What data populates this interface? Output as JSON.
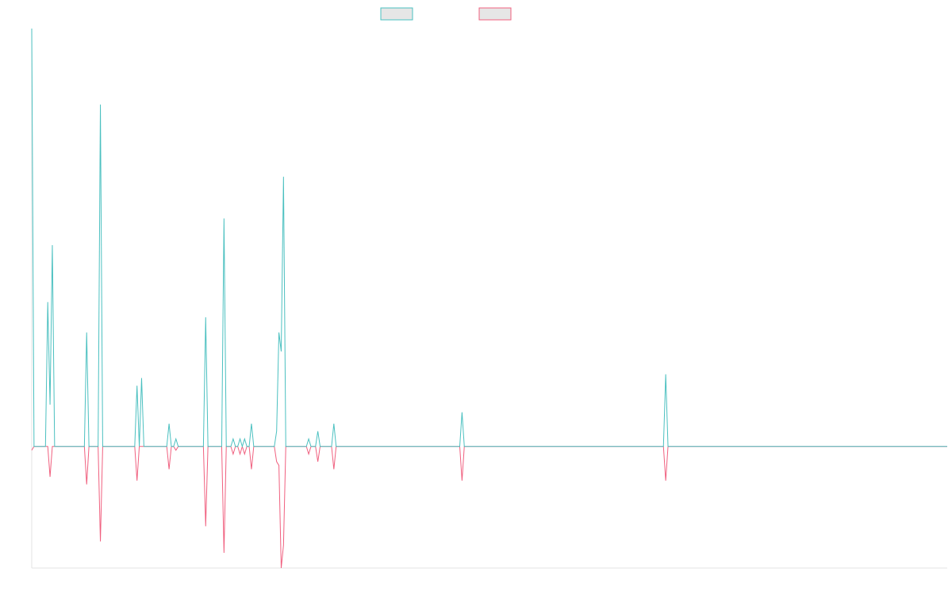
{
  "chart_data": {
    "type": "line",
    "title": "",
    "xlabel": "",
    "ylabel": "",
    "x": [
      0,
      1,
      2,
      3,
      4,
      5,
      6,
      7,
      8,
      9,
      10,
      11,
      12,
      13,
      14,
      15,
      16,
      17,
      18,
      19,
      20,
      21,
      22,
      23,
      24,
      25,
      26,
      27,
      28,
      29,
      30,
      31,
      32,
      33,
      34,
      35,
      36,
      37,
      38,
      39,
      40,
      41,
      42,
      43,
      44,
      45,
      46,
      47,
      48,
      49,
      50,
      51,
      52,
      53,
      54,
      55,
      56,
      57,
      58,
      59,
      60,
      61,
      62,
      63,
      64,
      65,
      66,
      67,
      68,
      69,
      70,
      71,
      72,
      73,
      74,
      75,
      76,
      77,
      78,
      79,
      80,
      81,
      82,
      83,
      84,
      85,
      86,
      87,
      88,
      89,
      90,
      91,
      92,
      93,
      94,
      95,
      96,
      97,
      98,
      99,
      100,
      101,
      102,
      103,
      104,
      105,
      106,
      107,
      108,
      109,
      110,
      111,
      112,
      113,
      114,
      115,
      116,
      117,
      118,
      119,
      120,
      121,
      122,
      123,
      124,
      125,
      126,
      127,
      128,
      129,
      130,
      131,
      132,
      133,
      134,
      135,
      136,
      137,
      138,
      139,
      140,
      141,
      142,
      143,
      144,
      145,
      146,
      147,
      148,
      149,
      150,
      151,
      152,
      153,
      154,
      155,
      156,
      157,
      158,
      159,
      160,
      161,
      162,
      163,
      164,
      165,
      166,
      167,
      168,
      169,
      170,
      171,
      172,
      173,
      174,
      175,
      176,
      177,
      178,
      179,
      180,
      181,
      182,
      183,
      184,
      185,
      186,
      187,
      188,
      189,
      190,
      191,
      192,
      193,
      194,
      195,
      196,
      197,
      198,
      199,
      200,
      201,
      202,
      203,
      204,
      205,
      206,
      207,
      208,
      209,
      210,
      211,
      212,
      213,
      214,
      215,
      216,
      217,
      218,
      219,
      220,
      221,
      222,
      223,
      224,
      225,
      226,
      227,
      228,
      229,
      230,
      231,
      232,
      233,
      234,
      235,
      236,
      237,
      238,
      239,
      240,
      241,
      242,
      243,
      244,
      245,
      246,
      247,
      248,
      249,
      250,
      251,
      252,
      253,
      254,
      255,
      256,
      257,
      258,
      259,
      260,
      261,
      262,
      263,
      264,
      265,
      266,
      267,
      268,
      269,
      270,
      271,
      272,
      273,
      274,
      275,
      276,
      277,
      278,
      279,
      280,
      281,
      282,
      283,
      284,
      285,
      286,
      287,
      288,
      289,
      290,
      291,
      292,
      293,
      294,
      295,
      296,
      297,
      298,
      299,
      300,
      301,
      302,
      303,
      304,
      305,
      306,
      307,
      308,
      309,
      310,
      311,
      312,
      313,
      314,
      315,
      316,
      317,
      318,
      319,
      320,
      321,
      322,
      323,
      324,
      325,
      326,
      327,
      328,
      329,
      330,
      331,
      332,
      333,
      334,
      335,
      336,
      337,
      338,
      339,
      340,
      341,
      342,
      343,
      344,
      345,
      346,
      347,
      348,
      349,
      350,
      351,
      352,
      353,
      354,
      355,
      356,
      357,
      358,
      359,
      360,
      361,
      362,
      363,
      364,
      365,
      366,
      367,
      368,
      369,
      370,
      371,
      372,
      373,
      374,
      375,
      376,
      377,
      378,
      379,
      380,
      381,
      382,
      383,
      384,
      385,
      386,
      387,
      388,
      389,
      390,
      391,
      392,
      393,
      394,
      395,
      396,
      397,
      398,
      399,
      400
    ],
    "series": [
      {
        "color": "#4bc0c0",
        "values": [
          110,
          0,
          0,
          0,
          0,
          0,
          0,
          38,
          11,
          53,
          0,
          0,
          0,
          0,
          0,
          0,
          0,
          0,
          0,
          0,
          0,
          0,
          0,
          0,
          30,
          0,
          0,
          0,
          0,
          0,
          90,
          0,
          0,
          0,
          0,
          0,
          0,
          0,
          0,
          0,
          0,
          0,
          0,
          0,
          0,
          0,
          16,
          0,
          18,
          0,
          0,
          0,
          0,
          0,
          0,
          0,
          0,
          0,
          0,
          0,
          6,
          0,
          0,
          2,
          0,
          0,
          0,
          0,
          0,
          0,
          0,
          0,
          0,
          0,
          0,
          0,
          34,
          0,
          0,
          0,
          0,
          0,
          0,
          0,
          60,
          0,
          0,
          0,
          2,
          0,
          0,
          2,
          0,
          2,
          0,
          0,
          6,
          0,
          0,
          0,
          0,
          0,
          0,
          0,
          0,
          0,
          0,
          4,
          30,
          25,
          71,
          0,
          0,
          0,
          0,
          0,
          0,
          0,
          0,
          0,
          0,
          2,
          0,
          0,
          0,
          4,
          0,
          0,
          0,
          0,
          0,
          0,
          6,
          0,
          0,
          0,
          0,
          0,
          0,
          0,
          0,
          0,
          0,
          0,
          0,
          0,
          0,
          0,
          0,
          0,
          0,
          0,
          0,
          0,
          0,
          0,
          0,
          0,
          0,
          0,
          0,
          0,
          0,
          0,
          0,
          0,
          0,
          0,
          0,
          0,
          0,
          0,
          0,
          0,
          0,
          0,
          0,
          0,
          0,
          0,
          0,
          0,
          0,
          0,
          0,
          0,
          0,
          0,
          9,
          0,
          0,
          0,
          0,
          0,
          0,
          0,
          0,
          0,
          0,
          0,
          0,
          0,
          0,
          0,
          0,
          0,
          0,
          0,
          0,
          0,
          0,
          0,
          0,
          0,
          0,
          0,
          0,
          0,
          0,
          0,
          0,
          0,
          0,
          0,
          0,
          0,
          0,
          0,
          0,
          0,
          0,
          0,
          0,
          0,
          0,
          0,
          0,
          0,
          0,
          0,
          0,
          0,
          0,
          0,
          0,
          0,
          0,
          0,
          0,
          0,
          0,
          0,
          0,
          0,
          0,
          0,
          0,
          0,
          0,
          0,
          0,
          0,
          0,
          0,
          0,
          0,
          0,
          0,
          0,
          0,
          0,
          0,
          0,
          0,
          0,
          0,
          0,
          19,
          0,
          0,
          0,
          0,
          0,
          0,
          0,
          0,
          0,
          0,
          0,
          0,
          0,
          0,
          0,
          0,
          0,
          0,
          0,
          0,
          0,
          0,
          0,
          0,
          0,
          0,
          0,
          0,
          0,
          0,
          0,
          0,
          0,
          0,
          0,
          0,
          0,
          0,
          0,
          0,
          0,
          0,
          0,
          0,
          0,
          0,
          0,
          0,
          0,
          0,
          0,
          0,
          0,
          0,
          0,
          0,
          0,
          0,
          0,
          0,
          0,
          0,
          0,
          0,
          0,
          0,
          0,
          0,
          0,
          0,
          0,
          0,
          0,
          0,
          0,
          0,
          0,
          0,
          0,
          0,
          0,
          0,
          0,
          0,
          0,
          0,
          0,
          0,
          0,
          0,
          0,
          0,
          0,
          0,
          0,
          0,
          0,
          0,
          0,
          0,
          0,
          0,
          0,
          0,
          0,
          0,
          0,
          0,
          0,
          0,
          0,
          0,
          0,
          0,
          0,
          0,
          0,
          0,
          0,
          0,
          0,
          0,
          0
        ]
      },
      {
        "color": "#f0607f",
        "values": [
          -1,
          0,
          0,
          0,
          0,
          0,
          0,
          0,
          -8,
          0,
          0,
          0,
          0,
          0,
          0,
          0,
          0,
          0,
          0,
          0,
          0,
          0,
          0,
          0,
          -10,
          0,
          0,
          0,
          0,
          0,
          -25,
          0,
          0,
          0,
          0,
          0,
          0,
          0,
          0,
          0,
          0,
          0,
          0,
          0,
          0,
          0,
          -9,
          0,
          0,
          0,
          0,
          0,
          0,
          0,
          0,
          0,
          0,
          0,
          0,
          0,
          -6,
          0,
          0,
          -1,
          0,
          0,
          0,
          0,
          0,
          0,
          0,
          0,
          0,
          0,
          0,
          0,
          -21,
          0,
          0,
          0,
          0,
          0,
          0,
          0,
          -28,
          0,
          0,
          0,
          -2,
          0,
          0,
          -2,
          0,
          -2,
          0,
          0,
          -6,
          0,
          0,
          0,
          0,
          0,
          0,
          0,
          0,
          0,
          0,
          -4,
          -5,
          -32,
          -26,
          0,
          0,
          0,
          0,
          0,
          0,
          0,
          0,
          0,
          0,
          -2,
          0,
          0,
          0,
          -4,
          0,
          0,
          0,
          0,
          0,
          0,
          -6,
          0,
          0,
          0,
          0,
          0,
          0,
          0,
          0,
          0,
          0,
          0,
          0,
          0,
          0,
          0,
          0,
          0,
          0,
          0,
          0,
          0,
          0,
          0,
          0,
          0,
          0,
          0,
          0,
          0,
          0,
          0,
          0,
          0,
          0,
          0,
          0,
          0,
          0,
          0,
          0,
          0,
          0,
          0,
          0,
          0,
          0,
          0,
          0,
          0,
          0,
          0,
          0,
          0,
          0,
          0,
          -9,
          0,
          0,
          0,
          0,
          0,
          0,
          0,
          0,
          0,
          0,
          0,
          0,
          0,
          0,
          0,
          0,
          0,
          0,
          0,
          0,
          0,
          0,
          0,
          0,
          0,
          0,
          0,
          0,
          0,
          0,
          0,
          0,
          0,
          0,
          0,
          0,
          0,
          0,
          0,
          0,
          0,
          0,
          0,
          0,
          0,
          0,
          0,
          0,
          0,
          0,
          0,
          0,
          0,
          0,
          0,
          0,
          0,
          0,
          0,
          0,
          0,
          0,
          0,
          0,
          0,
          0,
          0,
          0,
          0,
          0,
          0,
          0,
          0,
          0,
          0,
          0,
          0,
          0,
          0,
          0,
          0,
          0,
          0,
          0,
          0,
          0,
          0,
          0,
          -9,
          0,
          0,
          0,
          0,
          0,
          0,
          0,
          0,
          0,
          0,
          0,
          0,
          0,
          0,
          0,
          0,
          0,
          0,
          0,
          0,
          0,
          0,
          0,
          0,
          0,
          0,
          0,
          0,
          0,
          0,
          0,
          0,
          0,
          0,
          0,
          0,
          0,
          0,
          0,
          0,
          0,
          0,
          0,
          0,
          0,
          0,
          0,
          0,
          0,
          0,
          0,
          0,
          0,
          0,
          0,
          0,
          0,
          0,
          0,
          0,
          0,
          0,
          0,
          0,
          0,
          0,
          0,
          0,
          0,
          0,
          0,
          0,
          0,
          0,
          0,
          0,
          0,
          0,
          0,
          0,
          0,
          0,
          0,
          0,
          0,
          0,
          0,
          0,
          0,
          0,
          0,
          0,
          0,
          0,
          0,
          0,
          0,
          0,
          0,
          0,
          0,
          0,
          0,
          0,
          0,
          0,
          0,
          0,
          0,
          0,
          0,
          0,
          0,
          0,
          0,
          0,
          0,
          0,
          0,
          0,
          0,
          0,
          0
        ]
      }
    ],
    "xlim": [
      0,
      400
    ],
    "ylim": [
      -32,
      110
    ],
    "grid": false,
    "legend": "top-center"
  }
}
